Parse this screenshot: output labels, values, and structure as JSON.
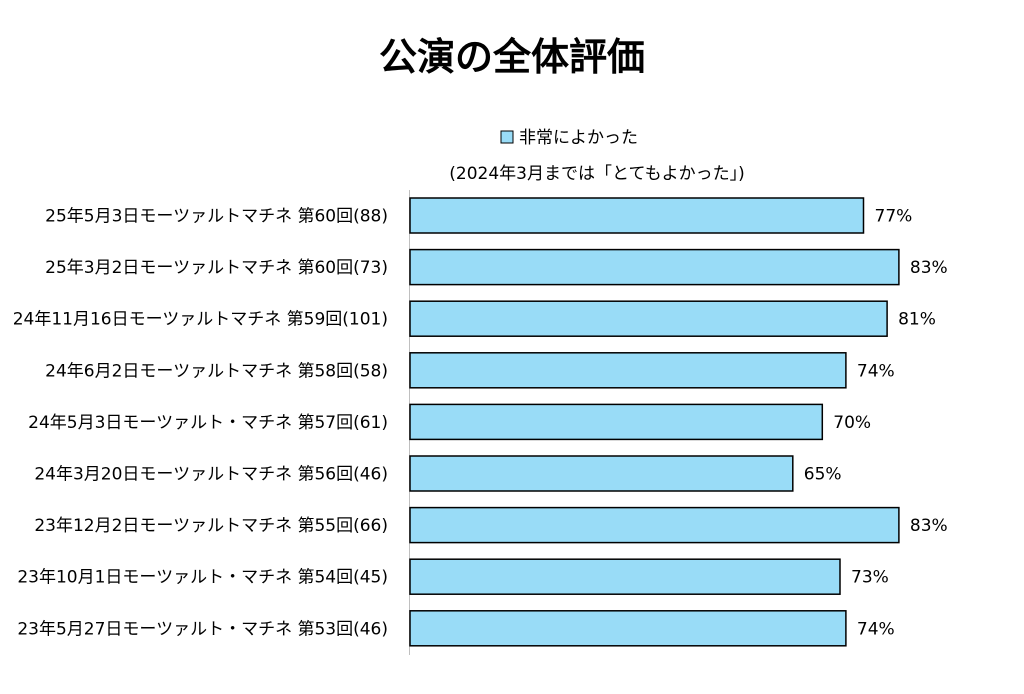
{
  "chart_data": {
    "type": "bar",
    "orientation": "horizontal",
    "title": "公演の全体評価",
    "legend": {
      "label": "非常によかった",
      "note": "(2024年3月までは「とてもよかった」)",
      "placement": "top"
    },
    "series": [
      {
        "name": "非常によかった",
        "color": "#99dcf7",
        "values": [
          77,
          83,
          81,
          74,
          70,
          65,
          83,
          73,
          74
        ]
      }
    ],
    "categories": [
      "25年5月3日モーツァルトマチネ 第60回(88)",
      "25年3月2日モーツァルトマチネ 第60回(73)",
      "24年11月16日モーツァルトマチネ 第59回(101)",
      "24年6月2日モーツァルトマチネ 第58回(58)",
      "24年5月3日モーツァルト・マチネ 第57回(61)",
      "24年3月20日モーツァルトマチネ 第56回(46)",
      "23年12月2日モーツァルトマチネ 第55回(66)",
      "23年10月1日モーツァルト・マチネ 第54回(45)",
      "23年5月27日モーツァルト・マチネ 第53回(46)"
    ],
    "value_labels": [
      "77%",
      "83%",
      "81%",
      "74%",
      "70%",
      "65%",
      "83%",
      "73%",
      "74%"
    ],
    "xlim": [
      0,
      100
    ],
    "grid": false
  }
}
